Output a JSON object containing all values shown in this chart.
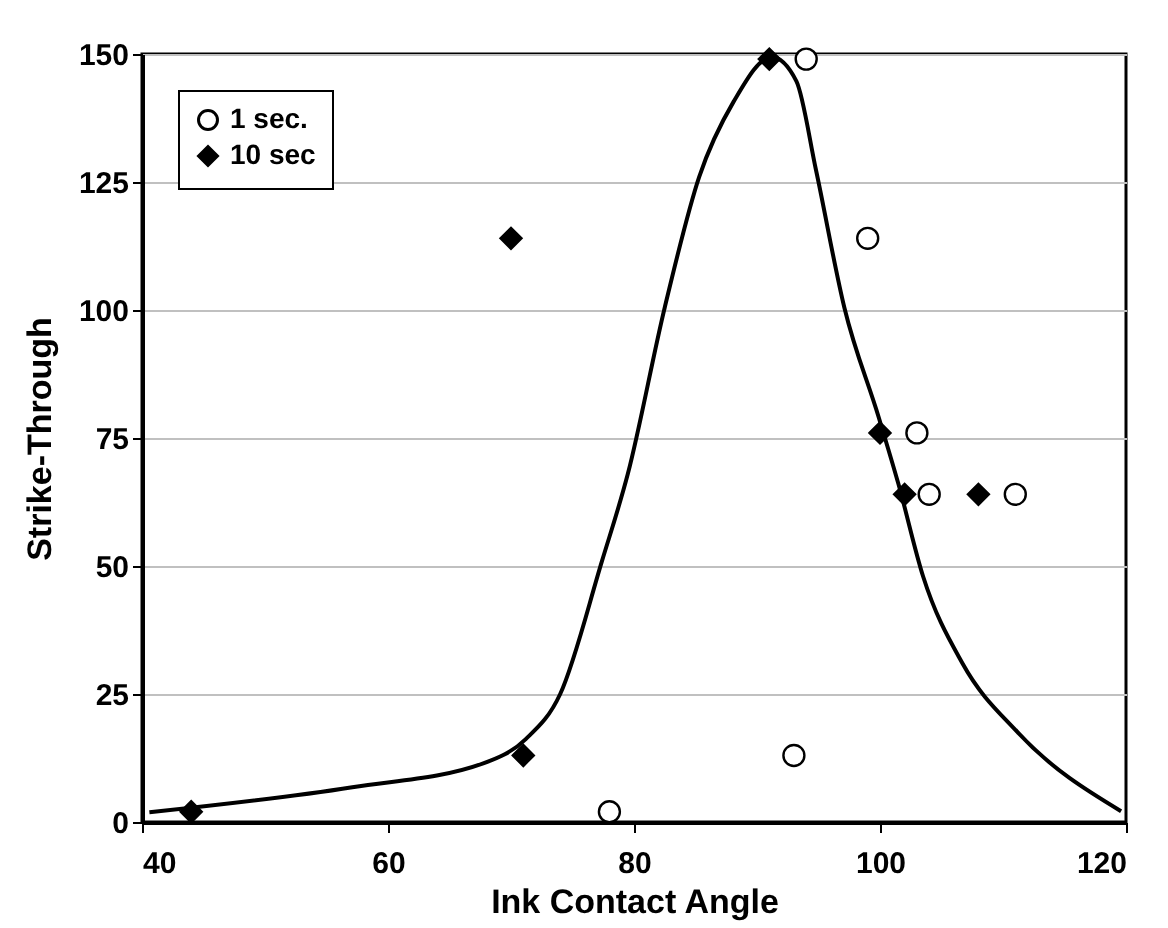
{
  "chart_data": {
    "type": "scatter",
    "xlabel": "Ink Contact Angle",
    "ylabel": "Strike-Through",
    "xlim": [
      40,
      120
    ],
    "xticks": [
      40,
      60,
      80,
      100,
      120
    ],
    "ylim": [
      0,
      150
    ],
    "yticks": [
      0,
      25,
      50,
      75,
      100,
      125,
      150
    ],
    "grid": "y",
    "legend": "top left",
    "series": [
      {
        "name": "1 sec.",
        "type": "scatter",
        "marker": "circle",
        "color": "#000000",
        "x": [
          78,
          93,
          99,
          94,
          103,
          104,
          111
        ],
        "values": [
          2,
          13,
          114,
          149,
          76,
          64,
          64
        ]
      },
      {
        "name": "10 sec",
        "type": "scatter",
        "marker": "diamond",
        "color": "#000000",
        "x": [
          44,
          71,
          70,
          91,
          100,
          102,
          108
        ],
        "values": [
          2,
          13,
          114,
          149,
          76,
          64,
          64
        ]
      },
      {
        "type": "line",
        "marker": "none",
        "line_style": "solid",
        "color": "#000000",
        "x": [
          40.6,
          57.1,
          67.8,
          71.2,
          74,
          77.4,
          79.5,
          82.5,
          85.3,
          88.1,
          91.2,
          93.2,
          94.8,
          97.1,
          99.9,
          101.5,
          103.5,
          106.7,
          111.2,
          119.6
        ],
        "values": [
          1.9,
          6.8,
          11.5,
          16.2,
          25,
          51,
          68,
          100.5,
          126,
          140.7,
          149.4,
          144.7,
          127.3,
          100.5,
          79,
          66,
          48,
          31,
          17.5,
          2.1
        ]
      }
    ]
  }
}
